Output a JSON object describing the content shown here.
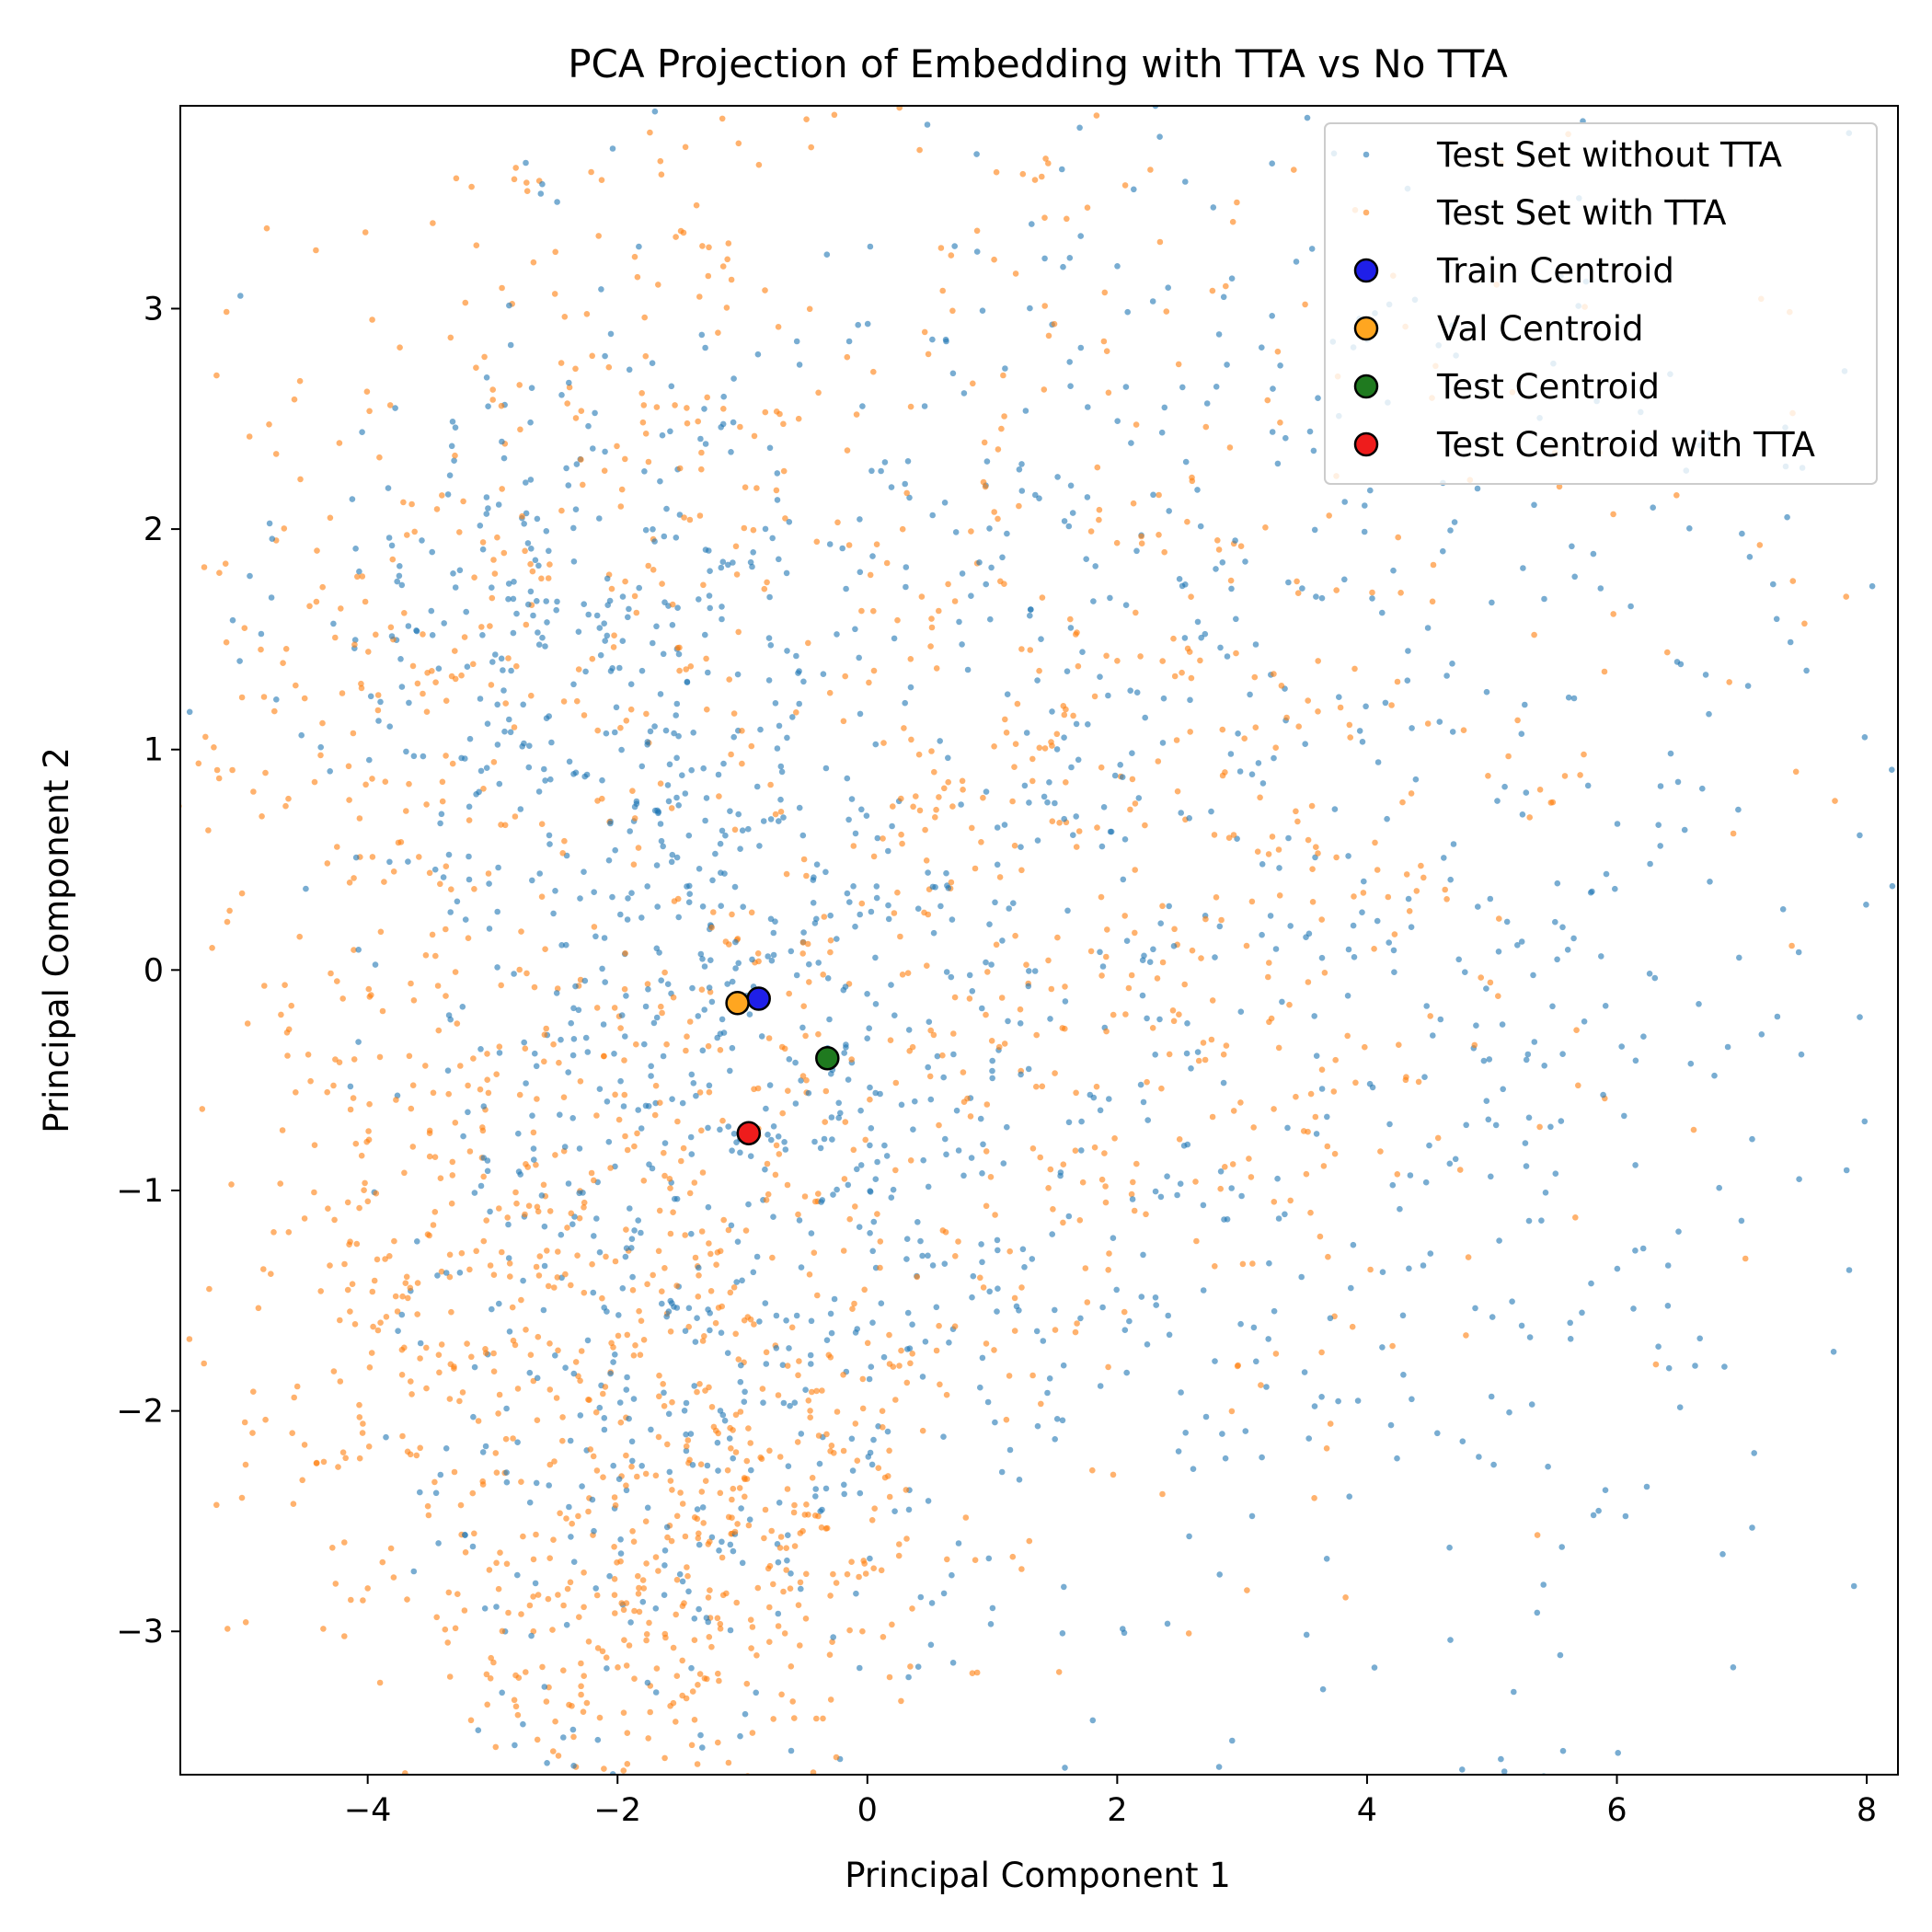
{
  "chart_data": {
    "type": "scatter",
    "title": "PCA Projection of Embedding with TTA vs No TTA",
    "xlabel": "Principal Component 1",
    "ylabel": "Principal Component 2",
    "xlim": [
      -5.5,
      8.25
    ],
    "ylim": [
      -3.65,
      3.92
    ],
    "xticks": [
      -4,
      -2,
      0,
      2,
      4,
      6,
      8
    ],
    "yticks": [
      -3,
      -2,
      -1,
      0,
      1,
      2,
      3
    ],
    "tick_labels_x": [
      "−4",
      "−2",
      "0",
      "2",
      "4",
      "6",
      "8"
    ],
    "tick_labels_y": [
      "−3",
      "−2",
      "−1",
      "0",
      "1",
      "2",
      "3"
    ],
    "grid": false,
    "legend_position": "top-right",
    "series": [
      {
        "name": "Test Set without TTA",
        "color": "#1f77b4",
        "marker": "small-dot",
        "clusters": [
          {
            "center": [
              -2.6,
              1.5
            ],
            "spread": [
              1.0,
              0.8
            ],
            "count": 260
          },
          {
            "center": [
              -1.3,
              0.4
            ],
            "spread": [
              1.1,
              1.1
            ],
            "count": 280
          },
          {
            "center": [
              -1.8,
              -1.8
            ],
            "spread": [
              1.0,
              0.9
            ],
            "count": 260
          },
          {
            "center": [
              0.5,
              -1.1
            ],
            "spread": [
              1.3,
              1.1
            ],
            "count": 300
          },
          {
            "center": [
              1.4,
              2.2
            ],
            "spread": [
              1.4,
              1.0
            ],
            "count": 160
          },
          {
            "center": [
              3.5,
              0.4
            ],
            "spread": [
              1.8,
              1.6
            ],
            "count": 260
          },
          {
            "center": [
              5.2,
              -1.3
            ],
            "spread": [
              1.6,
              1.3
            ],
            "count": 140
          },
          {
            "center": [
              6.3,
              1.4
            ],
            "spread": [
              1.3,
              1.3
            ],
            "count": 70
          }
        ]
      },
      {
        "name": "Test Set with TTA",
        "color": "#ff7f0e",
        "marker": "small-dot",
        "clusters": [
          {
            "center": [
              -3.9,
              0.6
            ],
            "spread": [
              1.0,
              1.3
            ],
            "count": 230
          },
          {
            "center": [
              -2.1,
              2.3
            ],
            "spread": [
              1.0,
              0.8
            ],
            "count": 160
          },
          {
            "center": [
              -3.3,
              -1.7
            ],
            "spread": [
              1.0,
              0.6
            ],
            "count": 230
          },
          {
            "center": [
              -2.0,
              -3.0
            ],
            "spread": [
              0.9,
              0.45
            ],
            "count": 200
          },
          {
            "center": [
              -0.8,
              -2.3
            ],
            "spread": [
              0.8,
              0.6
            ],
            "count": 220
          },
          {
            "center": [
              -1.6,
              -0.7
            ],
            "spread": [
              0.9,
              0.6
            ],
            "count": 160
          },
          {
            "center": [
              0.7,
              0.3
            ],
            "spread": [
              1.3,
              1.0
            ],
            "count": 200
          },
          {
            "center": [
              2.6,
              -0.4
            ],
            "spread": [
              1.3,
              1.0
            ],
            "count": 200
          },
          {
            "center": [
              1.2,
              2.6
            ],
            "spread": [
              1.6,
              1.2
            ],
            "count": 130
          },
          {
            "center": [
              4.5,
              1.8
            ],
            "spread": [
              2.0,
              1.5
            ],
            "count": 120
          }
        ]
      },
      {
        "name": "Train Centroid",
        "color": "#1f1fe8",
        "marker": "circle-outlined",
        "x": -0.87,
        "y": -0.13
      },
      {
        "name": "Val Centroid",
        "color": "#ffa620",
        "marker": "circle-outlined",
        "x": -1.04,
        "y": -0.15
      },
      {
        "name": "Test Centroid",
        "color": "#1f7a1f",
        "marker": "circle-outlined",
        "x": -0.32,
        "y": -0.4
      },
      {
        "name": "Test Centroid with TTA",
        "color": "#ee1c1c",
        "marker": "circle-outlined",
        "x": -0.95,
        "y": -0.74
      }
    ]
  }
}
